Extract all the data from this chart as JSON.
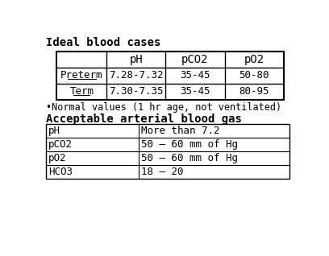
{
  "title1": "Ideal blood cases",
  "title2": "Acceptable arterial blood gas",
  "note": "•Normal values (1 hr age, not ventilated)",
  "table1_headers": [
    "",
    "pH",
    "pCO2",
    "pO2"
  ],
  "table1_rows": [
    [
      "Preterm",
      "7.28-7.32",
      "35-45",
      "50-80"
    ],
    [
      "Term",
      "7.30-7.35",
      "35-45",
      "80-95"
    ]
  ],
  "table2_rows": [
    [
      "pH",
      "More than 7.2"
    ],
    [
      "pCO2",
      "50 – 60 mm of Hg"
    ],
    [
      "pO2",
      "50 – 60 mm of Hg"
    ],
    [
      "HCO3",
      "18 – 20"
    ]
  ],
  "bg_color": "#ffffff",
  "text_color": "#000000",
  "font_size": 9,
  "title_font_size": 10
}
